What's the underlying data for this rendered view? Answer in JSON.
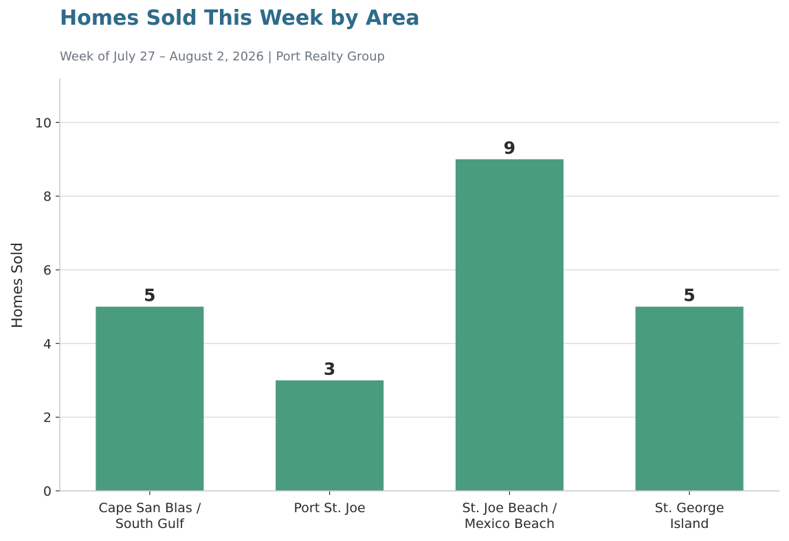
{
  "chart_data": {
    "type": "bar",
    "title": "Homes Sold This Week by Area",
    "subtitle": "Week of July 27 – August 2, 2026  |  Port Realty Group",
    "xlabel": "",
    "ylabel": "Homes Sold",
    "categories": [
      [
        "Cape San Blas /",
        "South Gulf"
      ],
      [
        "Port St. Joe"
      ],
      [
        "St. Joe Beach /",
        "Mexico Beach"
      ],
      [
        "St. George",
        "Island"
      ]
    ],
    "values": [
      5,
      3,
      9,
      5
    ],
    "ylim": [
      0,
      11.2
    ],
    "yticks": [
      0,
      2,
      4,
      6,
      8,
      10
    ],
    "grid": "horizontal",
    "colors": {
      "bar": "#4a9c7e",
      "title": "#2e6b8a",
      "subtitle": "#6b7580",
      "grid": "#dddddd",
      "axis": "#c8c8c8",
      "text": "#2b2b2b"
    }
  }
}
